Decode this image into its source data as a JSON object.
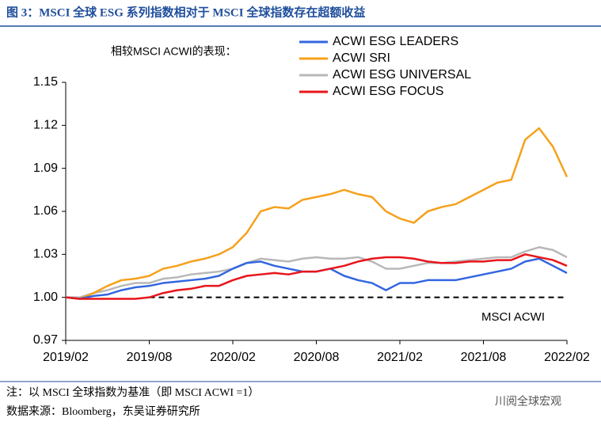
{
  "chart_data": {
    "type": "line",
    "title": "图 3：MSCI 全球 ESG 系列指数相对于 MSCI 全球指数存在超额收益",
    "subtitle": "相较MSCI ACWI的表现：",
    "categories": [
      "2019/02",
      null,
      null,
      null,
      null,
      null,
      "2019/08",
      null,
      null,
      null,
      null,
      null,
      "2020/02",
      null,
      null,
      null,
      null,
      null,
      "2020/08",
      null,
      null,
      null,
      null,
      null,
      "2021/02",
      null,
      null,
      null,
      null,
      null,
      "2021/08",
      null,
      null,
      null,
      null,
      null,
      "2022/02"
    ],
    "series": [
      {
        "name": "ACWI ESG LEADERS",
        "color": "#3366e0",
        "values": [
          1.0,
          0.999,
          1.001,
          1.002,
          1.005,
          1.007,
          1.008,
          1.01,
          1.011,
          1.012,
          1.013,
          1.015,
          1.02,
          1.024,
          1.025,
          1.022,
          1.02,
          1.018,
          1.018,
          1.02,
          1.015,
          1.012,
          1.01,
          1.005,
          1.01,
          1.01,
          1.012,
          1.012,
          1.012,
          1.014,
          1.016,
          1.018,
          1.02,
          1.025,
          1.027,
          1.022,
          1.017
        ]
      },
      {
        "name": "ACWI SRI",
        "color": "#f5a11c",
        "values": [
          1.0,
          0.999,
          1.003,
          1.008,
          1.012,
          1.013,
          1.015,
          1.02,
          1.022,
          1.025,
          1.027,
          1.03,
          1.035,
          1.045,
          1.06,
          1.063,
          1.062,
          1.068,
          1.07,
          1.072,
          1.075,
          1.072,
          1.07,
          1.06,
          1.055,
          1.052,
          1.06,
          1.063,
          1.065,
          1.07,
          1.075,
          1.08,
          1.082,
          1.11,
          1.118,
          1.105,
          1.084
        ]
      },
      {
        "name": "ACWI ESG UNIVERSAL",
        "color": "#b8b8b8",
        "values": [
          1.0,
          1.0,
          1.003,
          1.005,
          1.008,
          1.01,
          1.01,
          1.013,
          1.014,
          1.016,
          1.017,
          1.018,
          1.02,
          1.024,
          1.027,
          1.026,
          1.025,
          1.027,
          1.028,
          1.027,
          1.027,
          1.028,
          1.025,
          1.02,
          1.02,
          1.022,
          1.024,
          1.024,
          1.025,
          1.026,
          1.027,
          1.028,
          1.028,
          1.032,
          1.035,
          1.033,
          1.028
        ]
      },
      {
        "name": "ACWI ESG FOCUS",
        "color": "#e8151b",
        "values": [
          1.0,
          0.999,
          0.999,
          0.999,
          0.999,
          0.999,
          1.0,
          1.003,
          1.005,
          1.006,
          1.008,
          1.008,
          1.012,
          1.015,
          1.016,
          1.017,
          1.016,
          1.018,
          1.018,
          1.02,
          1.022,
          1.025,
          1.027,
          1.028,
          1.028,
          1.027,
          1.025,
          1.024,
          1.024,
          1.025,
          1.025,
          1.026,
          1.026,
          1.03,
          1.028,
          1.026,
          1.022
        ]
      }
    ],
    "baseline": {
      "value": 1,
      "label": "MSCI ACWI"
    },
    "ylim": [
      0.97,
      1.15
    ],
    "yticks": [
      0.97,
      {
        "value": 1,
        "label": "1.00"
      },
      1.03,
      1.06,
      1.09,
      1.12,
      1.15
    ],
    "grid": false,
    "notes": [
      "注：以 MSCI 全球指数为基准（即 MSCI ACWI =1）",
      "数据来源：Bloomberg，东吴证券研究所"
    ],
    "watermark": "川阅全球宏观"
  }
}
